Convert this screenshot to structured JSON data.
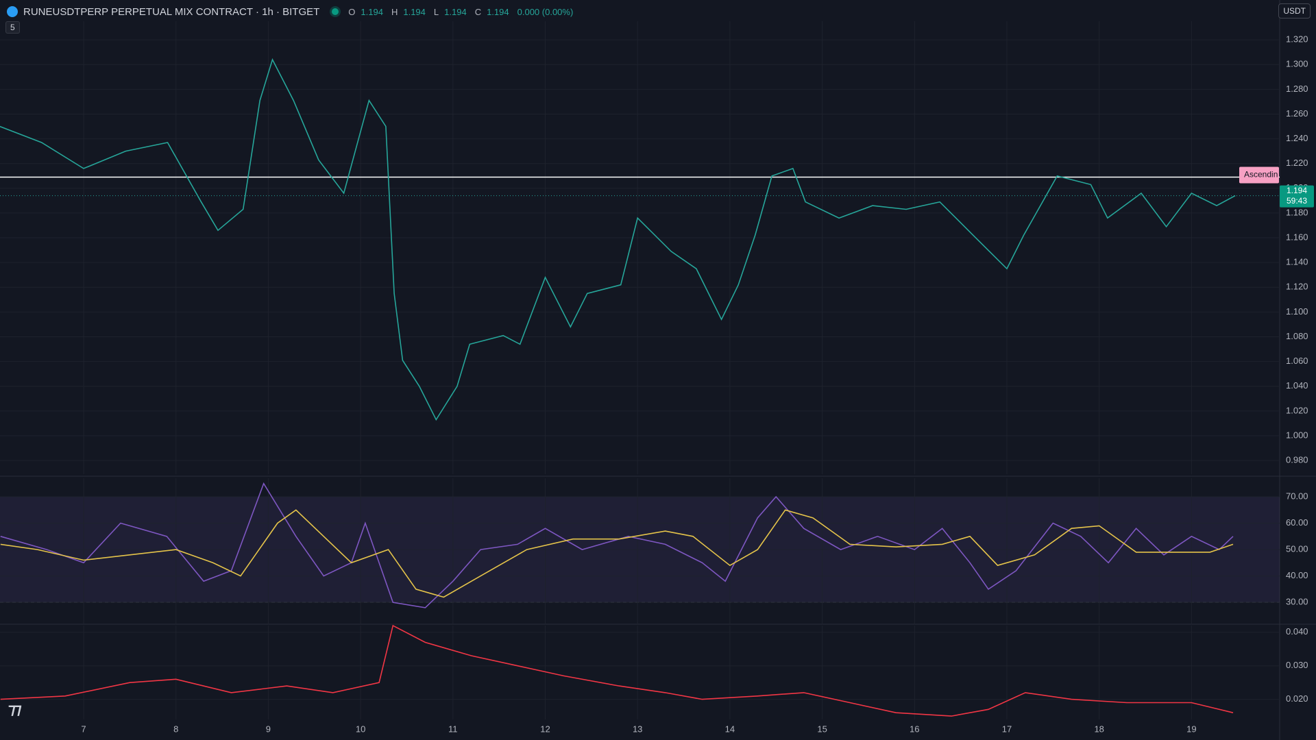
{
  "header": {
    "title": "RUNEUSDTPERP PERPETUAL MIX CONTRACT · 1h · BITGET",
    "ohlc": [
      {
        "label": "O",
        "value": "1.194"
      },
      {
        "label": "H",
        "value": "1.194"
      },
      {
        "label": "L",
        "value": "1.194"
      },
      {
        "label": "C",
        "value": "1.194"
      }
    ],
    "change": "0.000 (0.00%)",
    "interval_badge": "5"
  },
  "currency": "USDT",
  "price_label": {
    "value": 1.194,
    "label": "1.194",
    "countdown": "59:43"
  },
  "pattern_label": "Ascendin",
  "chart_data": [
    {
      "type": "line",
      "x": [
        6.091,
        6.545,
        7.0,
        7.455,
        7.909,
        8.273,
        8.455,
        8.727,
        8.909,
        9.045,
        9.273,
        9.545,
        9.818,
        10.091,
        10.273,
        10.364,
        10.455,
        10.636,
        10.818,
        11.045,
        11.182,
        11.545,
        11.727,
        12.0,
        12.273,
        12.455,
        12.818,
        13.0,
        13.364,
        13.636,
        13.909,
        14.091,
        14.273,
        14.455,
        14.682,
        14.818,
        15.182,
        15.545,
        15.909,
        16.273,
        16.636,
        17.0,
        17.182,
        17.545,
        17.909,
        18.091,
        18.455,
        18.727,
        19.0,
        19.273,
        19.473
      ],
      "series": [
        {
          "color": "#26a69a",
          "values": [
            1.25,
            1.237,
            1.216,
            1.23,
            1.237,
            1.189,
            1.166,
            1.183,
            1.271,
            1.304,
            1.271,
            1.223,
            1.196,
            1.271,
            1.25,
            1.115,
            1.061,
            1.04,
            1.013,
            1.04,
            1.074,
            1.081,
            1.074,
            1.128,
            1.088,
            1.115,
            1.122,
            1.176,
            1.149,
            1.135,
            1.094,
            1.122,
            1.162,
            1.21,
            1.216,
            1.189,
            1.176,
            1.186,
            1.183,
            1.189,
            1.162,
            1.135,
            1.162,
            1.21,
            1.203,
            1.176,
            1.196,
            1.169,
            1.196,
            1.186,
            1.194
          ]
        }
      ],
      "xlim": [
        6.094,
        19.955
      ],
      "xticks": [
        7,
        8,
        9,
        10,
        11,
        12,
        13,
        14,
        15,
        16,
        17,
        18,
        19
      ],
      "ylim": [
        0.969,
        1.335
      ],
      "yticks": [
        {
          "value": 1.32,
          "label": "1.320"
        },
        {
          "value": 1.3,
          "label": "1.300"
        },
        {
          "value": 1.28,
          "label": "1.280"
        },
        {
          "value": 1.26,
          "label": "1.260"
        },
        {
          "value": 1.24,
          "label": "1.240"
        },
        {
          "value": 1.22,
          "label": "1.220"
        },
        {
          "value": 1.2,
          "label": "1.200"
        },
        {
          "value": 1.18,
          "label": "1.180"
        },
        {
          "value": 1.16,
          "label": "1.160"
        },
        {
          "value": 1.14,
          "label": "1.140"
        },
        {
          "value": 1.12,
          "label": "1.120"
        },
        {
          "value": 1.1,
          "label": "1.100"
        },
        {
          "value": 1.08,
          "label": "1.080"
        },
        {
          "value": 1.06,
          "label": "1.060"
        },
        {
          "value": 1.04,
          "label": "1.040"
        },
        {
          "value": 1.02,
          "label": "1.020"
        },
        {
          "value": 1,
          "label": "1.000"
        },
        {
          "value": 0.98,
          "label": "0.980"
        }
      ],
      "level": 1.209,
      "grid": true
    },
    {
      "type": "line",
      "series": [
        {
          "color": "#7e57c2",
          "x": [
            6.1,
            6.6,
            7.0,
            7.4,
            7.9,
            8.3,
            8.6,
            8.95,
            9.3,
            9.6,
            9.9,
            10.05,
            10.35,
            10.7,
            11.0,
            11.3,
            11.7,
            12.0,
            12.4,
            12.9,
            13.3,
            13.7,
            13.95,
            14.3,
            14.5,
            14.8,
            15.2,
            15.6,
            16.0,
            16.3,
            16.6,
            16.8,
            17.1,
            17.5,
            17.8,
            18.1,
            18.4,
            18.7,
            19.0,
            19.3,
            19.45
          ],
          "values": [
            55,
            50,
            45,
            60,
            55,
            38,
            42,
            75,
            55,
            40,
            45,
            60,
            30,
            28,
            38,
            50,
            52,
            58,
            50,
            55,
            52,
            45,
            38,
            62,
            70,
            58,
            50,
            55,
            50,
            58,
            45,
            35,
            42,
            60,
            55,
            45,
            58,
            48,
            55,
            50,
            55
          ]
        },
        {
          "color": "#e5c44a",
          "x": [
            6.1,
            6.5,
            7.0,
            7.5,
            8.0,
            8.4,
            8.7,
            9.1,
            9.3,
            9.6,
            9.9,
            10.3,
            10.6,
            10.9,
            11.3,
            11.8,
            12.3,
            12.8,
            13.3,
            13.6,
            14.0,
            14.3,
            14.6,
            14.9,
            15.3,
            15.8,
            16.3,
            16.6,
            16.9,
            17.3,
            17.7,
            18.0,
            18.4,
            18.8,
            19.2,
            19.45
          ],
          "values": [
            52,
            50,
            46,
            48,
            50,
            45,
            40,
            60,
            65,
            55,
            45,
            50,
            35,
            32,
            40,
            50,
            54,
            54,
            57,
            55,
            44,
            50,
            65,
            62,
            52,
            51,
            52,
            55,
            44,
            48,
            58,
            59,
            49,
            49,
            49,
            52
          ]
        }
      ],
      "xlim": [
        6.094,
        19.955
      ],
      "ylim": [
        22,
        77
      ],
      "yticks": [
        {
          "value": 70,
          "label": "70.00"
        },
        {
          "value": 60,
          "label": "60.00"
        },
        {
          "value": 50,
          "label": "50.00"
        },
        {
          "value": 40,
          "label": "40.00"
        },
        {
          "value": 30,
          "label": "30.00"
        }
      ],
      "band": [
        30,
        70
      ]
    },
    {
      "type": "line",
      "series": [
        {
          "color": "#f23645",
          "x": [
            6.1,
            6.8,
            7.5,
            8.0,
            8.6,
            9.2,
            9.7,
            10.2,
            10.35,
            10.7,
            11.2,
            11.7,
            12.2,
            12.8,
            13.3,
            13.7,
            14.3,
            14.8,
            15.3,
            15.8,
            16.4,
            16.8,
            17.2,
            17.7,
            18.3,
            19.0,
            19.45
          ],
          "values": [
            0.02,
            0.021,
            0.025,
            0.026,
            0.022,
            0.024,
            0.022,
            0.025,
            0.042,
            0.037,
            0.033,
            0.03,
            0.027,
            0.024,
            0.022,
            0.02,
            0.021,
            0.022,
            0.019,
            0.016,
            0.015,
            0.017,
            0.022,
            0.02,
            0.019,
            0.019,
            0.016
          ]
        }
      ],
      "xlim": [
        6.094,
        19.955
      ],
      "ylim": [
        0.014,
        0.042
      ],
      "yticks": [
        {
          "value": 0.04,
          "label": "0.040"
        },
        {
          "value": 0.03,
          "label": "0.030"
        },
        {
          "value": 0.02,
          "label": "0.020"
        }
      ]
    }
  ]
}
